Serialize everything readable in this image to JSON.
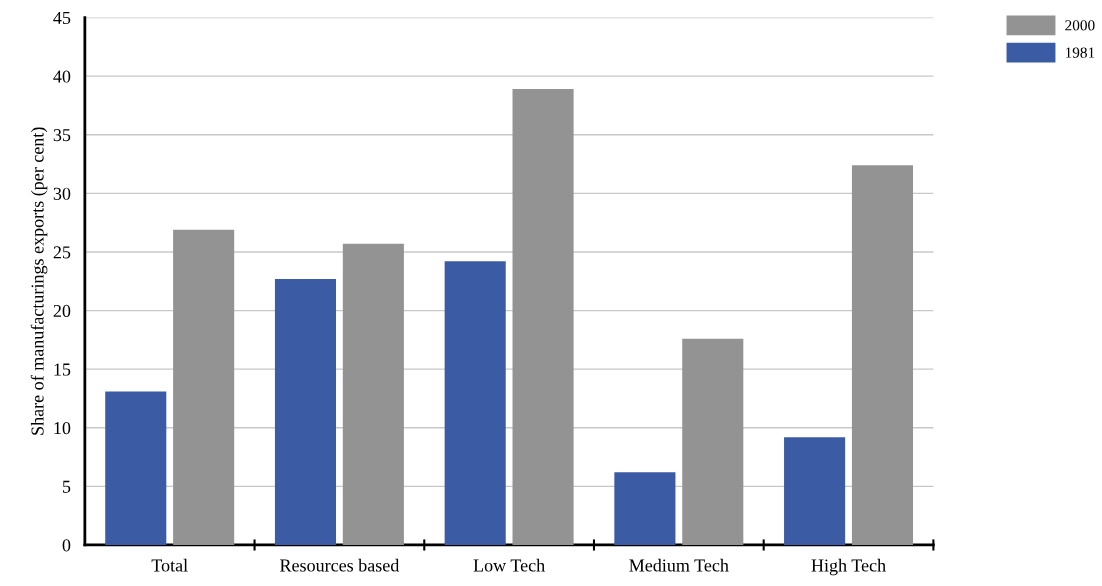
{
  "chart_data": {
    "type": "bar",
    "ylabel": "Share of manufacturings exports (per cent)",
    "categories": [
      "Total",
      "Resources based",
      "Low Tech",
      "Medium Tech",
      "High Tech"
    ],
    "series": [
      {
        "name": "1981",
        "color": "#3b5ba5",
        "values": [
          13.1,
          22.7,
          24.2,
          6.2,
          9.2
        ]
      },
      {
        "name": "2000",
        "color": "#939393",
        "values": [
          26.9,
          25.7,
          38.9,
          17.6,
          32.4
        ]
      }
    ],
    "ylim": [
      0,
      45
    ],
    "yticks": [
      0,
      5,
      10,
      15,
      20,
      25,
      30,
      35,
      40,
      45
    ],
    "grid": "y",
    "legend": "top right"
  }
}
